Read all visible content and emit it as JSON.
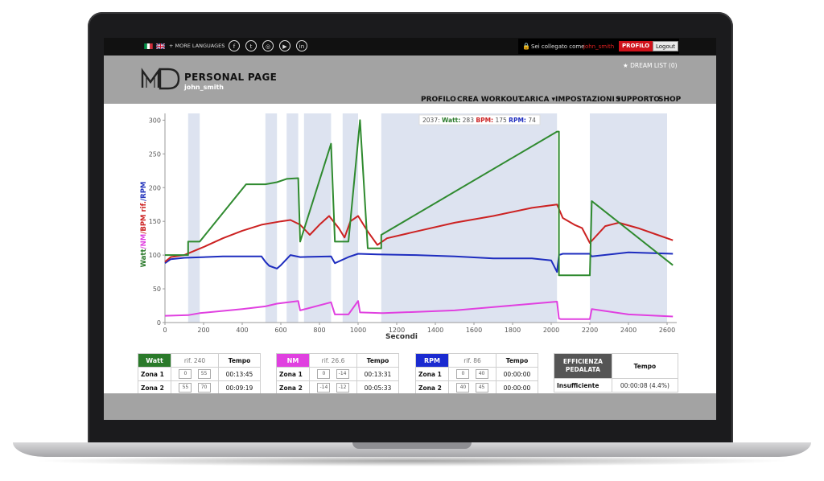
{
  "topbar": {
    "more_languages": "+ MORE LANGUAGES",
    "social_icons": [
      "facebook-icon",
      "twitter-icon",
      "instagram-icon",
      "youtube-icon",
      "linkedin-icon"
    ],
    "logged_in_label": "Sei collegato come",
    "username": "john_smith",
    "profile_button": "PROFILO",
    "logout_button": "Logout"
  },
  "header": {
    "logo_text": "MD",
    "site_title": "PERSONAL PAGE",
    "username": "john_smith",
    "dream_list": "★ DREAM LIST (0)",
    "nav": [
      "PROFILO",
      "CREA WORKOUT",
      "CARICA ▾",
      "IMPOSTAZIONI ▾",
      "SUPPORTO",
      "SHOP"
    ]
  },
  "chart_data": {
    "type": "line",
    "tooltip": {
      "x": "2037:",
      "watt_label": "Watt:",
      "watt": "283",
      "bpm_label": "BPM:",
      "bpm": "175",
      "rpm_label": "RPM:",
      "rpm": "74"
    },
    "xlabel": "Secondi",
    "ylabel_parts": [
      {
        "text": "Watt",
        "color": "#2a7a2a"
      },
      {
        "text": "/NM",
        "color": "#e040e0"
      },
      {
        "text": "/BPM rif.",
        "color": "#cc2222"
      },
      {
        "text": "/RPM",
        "color": "#2233bb"
      }
    ],
    "xlim": [
      0,
      2650
    ],
    "ylim": [
      0,
      310
    ],
    "xticks": [
      "0",
      "200",
      "400",
      "600",
      "800",
      "1000",
      "1200",
      "1400",
      "1600",
      "1800",
      "2000",
      "2200",
      "2400",
      "2600"
    ],
    "yticks": [
      "0",
      "50",
      "100",
      "150",
      "200",
      "250",
      "300"
    ],
    "bands": [
      [
        120,
        180
      ],
      [
        520,
        580
      ],
      [
        630,
        690
      ],
      [
        720,
        860
      ],
      [
        920,
        1000
      ],
      [
        1120,
        2030
      ],
      [
        2200,
        2600
      ]
    ],
    "series": [
      {
        "name": "Watt",
        "color": "#2f8a2f",
        "x": [
          0,
          120,
          120,
          180,
          180,
          420,
          520,
          580,
          630,
          690,
          700,
          860,
          880,
          950,
          1010,
          1050,
          1100,
          1120,
          1120,
          2030,
          2040,
          2040,
          2190,
          2200,
          2210,
          2630
        ],
        "y": [
          100,
          100,
          120,
          120,
          120,
          205,
          205,
          208,
          213,
          214,
          120,
          265,
          120,
          120,
          300,
          110,
          110,
          110,
          130,
          283,
          283,
          70,
          70,
          70,
          180,
          85
        ]
      },
      {
        "name": "BPM",
        "color": "#cc2222",
        "x": [
          0,
          30,
          100,
          200,
          300,
          400,
          500,
          600,
          650,
          700,
          750,
          800,
          850,
          900,
          930,
          960,
          1000,
          1050,
          1100,
          1150,
          1300,
          1500,
          1700,
          1900,
          2030,
          2060,
          2120,
          2160,
          2200,
          2280,
          2350,
          2450,
          2550,
          2630
        ],
        "y": [
          90,
          97,
          100,
          112,
          125,
          136,
          145,
          150,
          152,
          145,
          130,
          145,
          158,
          140,
          126,
          150,
          158,
          135,
          115,
          125,
          135,
          148,
          158,
          170,
          175,
          155,
          145,
          140,
          118,
          143,
          148,
          140,
          130,
          122
        ]
      },
      {
        "name": "RPM",
        "color": "#1e2dbf",
        "x": [
          0,
          30,
          100,
          300,
          500,
          520,
          540,
          580,
          600,
          650,
          700,
          860,
          880,
          950,
          1000,
          1100,
          1300,
          1500,
          1700,
          1900,
          2000,
          2030,
          2040,
          2060,
          2200,
          2210,
          2400,
          2630
        ],
        "y": [
          88,
          94,
          96,
          98,
          98,
          90,
          84,
          80,
          85,
          100,
          97,
          98,
          88,
          97,
          102,
          101,
          100,
          98,
          95,
          95,
          92,
          75,
          100,
          102,
          102,
          98,
          104,
          102
        ]
      },
      {
        "name": "NM",
        "color": "#e040e0",
        "x": [
          0,
          120,
          180,
          400,
          520,
          580,
          690,
          700,
          860,
          880,
          950,
          1000,
          1010,
          1120,
          1130,
          1500,
          2030,
          2040,
          2050,
          2200,
          2210,
          2400,
          2630
        ],
        "y": [
          10,
          11,
          14,
          20,
          24,
          28,
          32,
          18,
          30,
          12,
          12,
          32,
          15,
          14,
          14,
          18,
          31,
          6,
          5,
          5,
          20,
          12,
          9
        ]
      }
    ]
  },
  "tables": {
    "watt": {
      "title": "Watt",
      "rif": "rif. 240",
      "tempo_label": "Tempo",
      "rows": [
        {
          "zona": "Zona 1",
          "min": "0",
          "max": "55",
          "tempo": "00:13:45"
        },
        {
          "zona": "Zona 2",
          "min": "55",
          "max": "70",
          "tempo": "00:09:19"
        }
      ]
    },
    "nm": {
      "title": "NM",
      "rif": "rif. 26.6",
      "tempo_label": "Tempo",
      "rows": [
        {
          "zona": "Zona 1",
          "min": "0",
          "max": "-14",
          "tempo": "00:13:31"
        },
        {
          "zona": "Zona 2",
          "min": "-14",
          "max": "-12",
          "tempo": "00:05:33"
        }
      ]
    },
    "rpm": {
      "title": "RPM",
      "rif": "rif. 86",
      "tempo_label": "Tempo",
      "rows": [
        {
          "zona": "Zona 1",
          "min": "0",
          "max": "40",
          "tempo": "00:00:00"
        },
        {
          "zona": "Zona 2",
          "min": "40",
          "max": "45",
          "tempo": "00:00:00"
        }
      ]
    },
    "efficienza": {
      "title_line1": "EFFICIENZA",
      "title_line2": "PEDALATA",
      "tempo_label": "Tempo",
      "rows": [
        {
          "label": "Insufficiente",
          "tempo": "00:00:08 (4.4%)"
        }
      ]
    }
  },
  "colors": {
    "watt_header": "#2a7a2a",
    "nm_header": "#e040e0",
    "rpm_header": "#1a2ad0",
    "efficienza_header": "#555555",
    "band": "#dde3f0"
  }
}
